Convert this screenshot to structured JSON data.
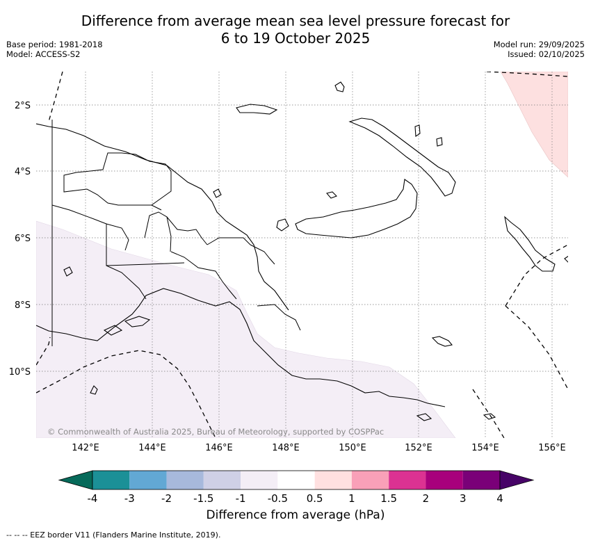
{
  "title": {
    "line1": "Difference from average mean sea level pressure forecast for",
    "line2": "6 to 19 October 2025"
  },
  "meta": {
    "base_period": "Base period: 1981-2018",
    "model": "Model: ACCESS-S2",
    "model_run": "Model run: 29/09/2025",
    "issued": "Issued: 02/10/2025"
  },
  "map": {
    "lon_ticks": [
      "142°E",
      "144°E",
      "146°E",
      "148°E",
      "150°E",
      "152°E",
      "154°E",
      "156°E"
    ],
    "lat_ticks": [
      "2°S",
      "4°S",
      "6°S",
      "8°S",
      "10°S"
    ],
    "copyright": "© Commonwealth of Australia 2025, Bureau of Meteorology, supported by COSPPac",
    "anomaly_regions": [
      {
        "name": "Northeast positive anomaly",
        "range": "0.5 to 1",
        "color": "#fde0e0"
      },
      {
        "name": "Southwest negative anomaly",
        "range": "-1 to -0.5",
        "color": "#f4eef6"
      }
    ]
  },
  "colorbar": {
    "title": "Difference from average (hPa)",
    "tick_labels": [
      "-4",
      "-3",
      "-2",
      "-1.5",
      "-1",
      "-0.5",
      "0.5",
      "1",
      "1.5",
      "2",
      "3",
      "4"
    ],
    "colors": [
      "#1b9097",
      "#62a8d4",
      "#a7b9dc",
      "#cfd0e6",
      "#f4eef6",
      "#ffffff",
      "#ffe0e0",
      "#f9a0b8",
      "#dc3292",
      "#a8007c",
      "#7a0078"
    ],
    "low_extend_color": "#066a5a",
    "high_extend_color": "#470467"
  },
  "legend": {
    "eez_label": "--  --  -- EEZ border V11 (Flanders Marine Institute, 2019)."
  }
}
